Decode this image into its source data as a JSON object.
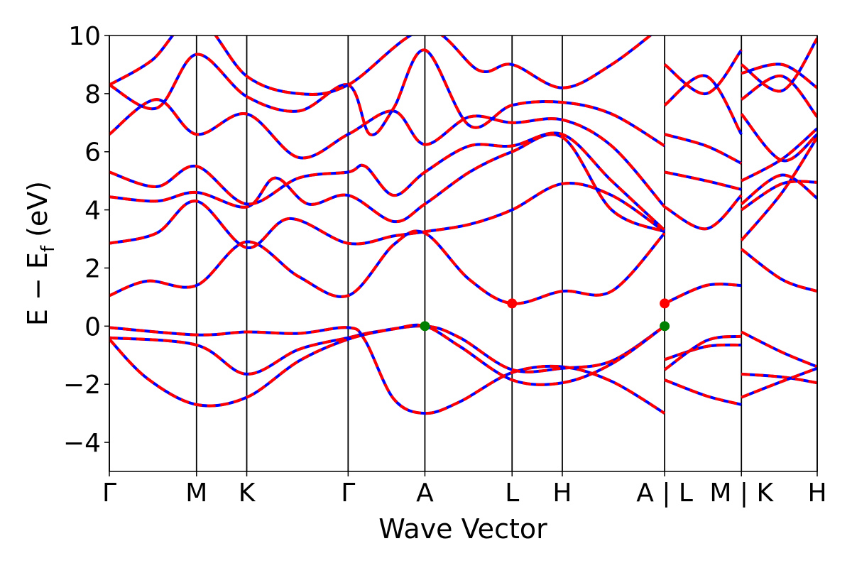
{
  "chart_data": {
    "type": "line",
    "title": "",
    "xlabel": "Wave Vector",
    "ylabel_main": "E − E",
    "ylabel_sub": "f",
    "ylabel_unit": " (eV)",
    "ylim": [
      -5,
      10
    ],
    "y_ticks": [
      -4,
      -2,
      0,
      2,
      4,
      6,
      8,
      10
    ],
    "y_tick_labels": [
      "−4",
      "−2",
      "0",
      "2",
      "4",
      "6",
      "8",
      "10"
    ],
    "x_range": [
      0,
      7.47
    ],
    "kpoints": [
      {
        "label": "Γ",
        "x": 0.0
      },
      {
        "label": "M",
        "x": 0.92
      },
      {
        "label": "K",
        "x": 1.45
      },
      {
        "label": "Γ",
        "x": 2.52
      },
      {
        "label": "A",
        "x": 3.33
      },
      {
        "label": "L",
        "x": 4.25
      },
      {
        "label": "H",
        "x": 4.78
      },
      {
        "label": "A | L",
        "x": 5.86
      },
      {
        "label": "M | K",
        "x": 6.67
      },
      {
        "label": "H",
        "x": 7.47
      }
    ],
    "line_colors": {
      "red": "#ff0000",
      "blue": "#0000ff",
      "axis": "#000000"
    },
    "band_extrema": [
      {
        "name": "VBM",
        "color": "#008000",
        "points": [
          [
            3.33,
            0.0
          ],
          [
            5.86,
            0.0
          ]
        ]
      },
      {
        "name": "CBM",
        "color": "#ff0000",
        "points": [
          [
            4.25,
            0.78
          ],
          [
            5.86,
            0.78
          ]
        ]
      }
    ],
    "series": [
      {
        "points": [
          [
            0,
            -0.05
          ],
          [
            0.92,
            -0.3
          ],
          [
            1.45,
            -0.2
          ],
          [
            2.0,
            -0.25
          ],
          [
            2.52,
            -0.05
          ],
          [
            2.7,
            -0.5
          ],
          [
            3.0,
            -2.5
          ],
          [
            3.33,
            -3.0
          ],
          [
            3.7,
            -2.6
          ],
          [
            4.25,
            -1.6
          ],
          [
            4.78,
            -1.4
          ],
          [
            5.3,
            -1.9
          ],
          [
            5.86,
            -3.0
          ]
        ]
      },
      {
        "points": [
          [
            0,
            -0.4
          ],
          [
            0.92,
            -0.65
          ],
          [
            1.45,
            -1.65
          ],
          [
            2.0,
            -0.8
          ],
          [
            2.52,
            -0.4
          ],
          [
            2.8,
            -0.2
          ],
          [
            3.33,
            0.0
          ],
          [
            3.7,
            -0.4
          ],
          [
            4.25,
            -1.5
          ],
          [
            4.78,
            -1.45
          ],
          [
            5.3,
            -1.2
          ],
          [
            5.86,
            0.0
          ]
        ]
      },
      {
        "points": [
          [
            0,
            -0.45
          ],
          [
            0.4,
            -1.8
          ],
          [
            0.92,
            -2.7
          ],
          [
            1.45,
            -2.45
          ],
          [
            2.0,
            -1.2
          ],
          [
            2.52,
            -0.45
          ],
          [
            3.0,
            -0.1
          ],
          [
            3.33,
            0.0
          ],
          [
            3.7,
            -0.7
          ],
          [
            4.25,
            -1.85
          ],
          [
            4.78,
            -1.95
          ],
          [
            5.3,
            -1.3
          ],
          [
            5.86,
            0.0
          ]
        ]
      },
      {
        "points": [
          [
            0,
            1.05
          ],
          [
            0.4,
            1.55
          ],
          [
            0.92,
            1.4
          ],
          [
            1.45,
            2.9
          ],
          [
            2.0,
            1.7
          ],
          [
            2.52,
            1.05
          ],
          [
            3.0,
            2.8
          ],
          [
            3.33,
            3.2
          ],
          [
            3.8,
            1.6
          ],
          [
            4.25,
            0.78
          ],
          [
            4.78,
            1.2
          ],
          [
            5.3,
            1.2
          ],
          [
            5.86,
            3.2
          ]
        ]
      },
      {
        "points": [
          [
            0,
            2.85
          ],
          [
            0.5,
            3.2
          ],
          [
            0.92,
            4.3
          ],
          [
            1.45,
            2.7
          ],
          [
            1.9,
            3.7
          ],
          [
            2.52,
            2.85
          ],
          [
            3.0,
            3.1
          ],
          [
            3.33,
            3.25
          ],
          [
            3.8,
            3.5
          ],
          [
            4.25,
            4.0
          ],
          [
            4.78,
            4.9
          ],
          [
            5.3,
            4.5
          ],
          [
            5.86,
            3.25
          ]
        ]
      },
      {
        "points": [
          [
            0,
            4.45
          ],
          [
            0.5,
            4.3
          ],
          [
            0.92,
            4.6
          ],
          [
            1.45,
            4.1
          ],
          [
            1.75,
            5.1
          ],
          [
            2.1,
            4.2
          ],
          [
            2.52,
            4.5
          ],
          [
            3.0,
            3.6
          ],
          [
            3.33,
            4.2
          ],
          [
            3.8,
            5.3
          ],
          [
            4.25,
            6.0
          ],
          [
            4.78,
            6.5
          ],
          [
            5.3,
            4.0
          ],
          [
            5.86,
            3.25
          ]
        ]
      },
      {
        "points": [
          [
            0,
            5.3
          ],
          [
            0.5,
            4.8
          ],
          [
            0.92,
            5.5
          ],
          [
            1.45,
            4.2
          ],
          [
            2.0,
            5.1
          ],
          [
            2.52,
            5.3
          ],
          [
            2.7,
            5.5
          ],
          [
            3.0,
            4.5
          ],
          [
            3.33,
            5.3
          ],
          [
            3.8,
            6.2
          ],
          [
            4.25,
            6.2
          ],
          [
            4.78,
            6.6
          ],
          [
            5.3,
            5.0
          ],
          [
            5.86,
            3.3
          ]
        ]
      },
      {
        "points": [
          [
            0,
            6.6
          ],
          [
            0.5,
            7.8
          ],
          [
            0.92,
            6.6
          ],
          [
            1.45,
            7.3
          ],
          [
            2.0,
            5.8
          ],
          [
            2.52,
            6.6
          ],
          [
            3.0,
            7.4
          ],
          [
            3.33,
            6.25
          ],
          [
            3.8,
            7.2
          ],
          [
            4.25,
            7.0
          ],
          [
            4.78,
            7.1
          ],
          [
            5.3,
            6.2
          ],
          [
            5.86,
            4.1
          ]
        ]
      },
      {
        "points": [
          [
            0,
            8.3
          ],
          [
            0.5,
            7.5
          ],
          [
            0.92,
            9.35
          ],
          [
            1.45,
            7.9
          ],
          [
            2.0,
            7.4
          ],
          [
            2.52,
            8.3
          ],
          [
            2.75,
            6.6
          ],
          [
            3.0,
            7.5
          ],
          [
            3.33,
            9.5
          ],
          [
            3.8,
            6.9
          ],
          [
            4.25,
            7.6
          ],
          [
            4.78,
            7.7
          ],
          [
            5.3,
            7.3
          ],
          [
            5.86,
            6.2
          ]
        ]
      },
      {
        "points": [
          [
            0,
            8.3
          ],
          [
            0.45,
            9.15
          ],
          [
            0.92,
            10.6
          ],
          [
            1.45,
            8.6
          ],
          [
            2.0,
            8.0
          ],
          [
            2.52,
            8.3
          ],
          [
            3.33,
            10.2
          ],
          [
            3.9,
            8.8
          ],
          [
            4.25,
            9.0
          ],
          [
            4.78,
            8.2
          ],
          [
            5.3,
            9.0
          ],
          [
            5.86,
            10.4
          ]
        ]
      },
      {
        "points": [
          [
            5.86,
            0.78
          ],
          [
            6.3,
            1.4
          ],
          [
            6.67,
            1.4
          ]
        ]
      },
      {
        "points": [
          [
            5.86,
            -1.15
          ],
          [
            6.3,
            -0.7
          ],
          [
            6.67,
            -0.65
          ]
        ]
      },
      {
        "points": [
          [
            5.86,
            -1.5
          ],
          [
            6.3,
            -0.5
          ],
          [
            6.67,
            -0.35
          ]
        ]
      },
      {
        "points": [
          [
            5.86,
            -1.85
          ],
          [
            6.3,
            -2.4
          ],
          [
            6.67,
            -2.7
          ]
        ]
      },
      {
        "points": [
          [
            5.86,
            4.1
          ],
          [
            6.3,
            3.35
          ],
          [
            6.67,
            4.5
          ]
        ]
      },
      {
        "points": [
          [
            5.86,
            5.3
          ],
          [
            6.3,
            5.0
          ],
          [
            6.67,
            4.7
          ]
        ]
      },
      {
        "points": [
          [
            5.86,
            6.6
          ],
          [
            6.3,
            6.2
          ],
          [
            6.67,
            5.6
          ]
        ]
      },
      {
        "points": [
          [
            5.86,
            7.6
          ],
          [
            6.3,
            8.6
          ],
          [
            6.67,
            6.6
          ]
        ]
      },
      {
        "points": [
          [
            5.86,
            9.0
          ],
          [
            6.3,
            8.0
          ],
          [
            6.67,
            9.5
          ]
        ]
      },
      {
        "points": [
          [
            6.67,
            -0.2
          ],
          [
            7.1,
            -0.9
          ],
          [
            7.47,
            -1.4
          ]
        ]
      },
      {
        "points": [
          [
            6.67,
            -1.65
          ],
          [
            7.1,
            -1.75
          ],
          [
            7.47,
            -1.95
          ]
        ]
      },
      {
        "points": [
          [
            6.67,
            -2.45
          ],
          [
            7.1,
            -1.9
          ],
          [
            7.47,
            -1.45
          ]
        ]
      },
      {
        "points": [
          [
            6.67,
            2.65
          ],
          [
            7.1,
            1.6
          ],
          [
            7.47,
            1.2
          ]
        ]
      },
      {
        "points": [
          [
            6.67,
            2.95
          ],
          [
            7.1,
            4.6
          ],
          [
            7.47,
            6.5
          ]
        ]
      },
      {
        "points": [
          [
            6.67,
            4.0
          ],
          [
            7.1,
            4.9
          ],
          [
            7.47,
            4.95
          ]
        ]
      },
      {
        "points": [
          [
            6.67,
            4.2
          ],
          [
            7.1,
            5.2
          ],
          [
            7.47,
            4.4
          ]
        ]
      },
      {
        "points": [
          [
            6.67,
            5.0
          ],
          [
            7.1,
            5.75
          ],
          [
            7.47,
            6.8
          ]
        ]
      },
      {
        "points": [
          [
            6.67,
            7.3
          ],
          [
            7.1,
            5.7
          ],
          [
            7.47,
            6.6
          ]
        ]
      },
      {
        "points": [
          [
            6.67,
            7.8
          ],
          [
            7.1,
            8.6
          ],
          [
            7.47,
            7.2
          ]
        ]
      },
      {
        "points": [
          [
            6.67,
            8.7
          ],
          [
            7.1,
            9.0
          ],
          [
            7.47,
            8.2
          ]
        ]
      },
      {
        "points": [
          [
            6.67,
            9.0
          ],
          [
            7.1,
            8.1
          ],
          [
            7.47,
            9.9
          ]
        ]
      }
    ]
  }
}
